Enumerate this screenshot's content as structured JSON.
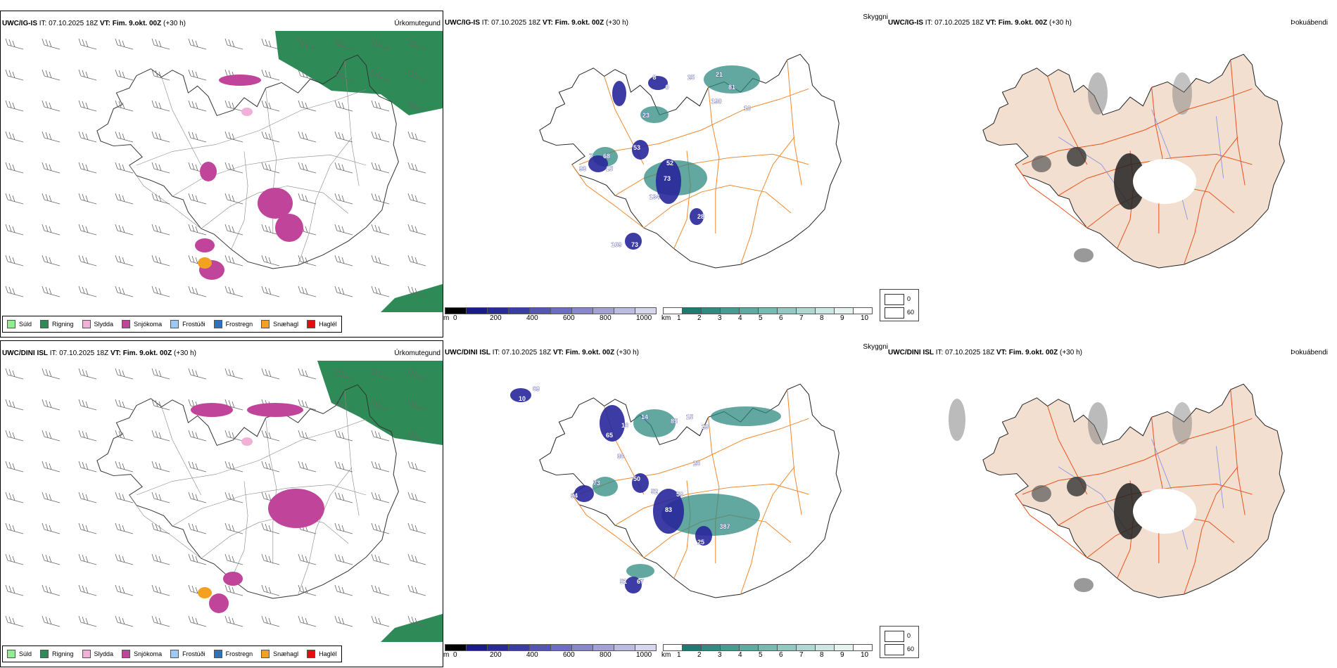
{
  "rows": [
    {
      "model": "UWC/IG-IS",
      "it_label": "IT:",
      "it_value": "07.10.2025 18Z",
      "vt_label": "VT:",
      "vt_value": "Fim. 9.okt. 00Z",
      "lead": "(+30 h)",
      "panels": {
        "precip_title": "Úrkomutegund",
        "cloud_title": "Skyggni",
        "terrain_title": "Þokuábendi"
      },
      "cloud_labels": [
        "68",
        "93",
        "53",
        "15",
        "52",
        "73",
        "134",
        "28",
        "73",
        "109",
        "81",
        "190",
        "10",
        "21",
        "25",
        "8",
        "0",
        "23",
        "7"
      ]
    },
    {
      "model": "UWC/DINI ISL",
      "it_label": "IT:",
      "it_value": "07.10.2025 18Z",
      "vt_label": "VT:",
      "vt_value": "Fim. 9.okt. 00Z",
      "lead": "(+30 h)",
      "panels": {
        "precip_title": "Úrkomutegund",
        "cloud_title": "Skyggni",
        "terrain_title": "Þokuábendi"
      },
      "cloud_labels": [
        "73",
        "94",
        "50",
        "52",
        "59",
        "83",
        "387",
        "25",
        "67",
        "51",
        "65",
        "36",
        "14",
        "16",
        "85",
        "15",
        "29",
        "26",
        "69",
        "10"
      ]
    }
  ],
  "precip_legend": [
    {
      "label": "Súld",
      "color": "#90ee90"
    },
    {
      "label": "Rigning",
      "color": "#2e8b57"
    },
    {
      "label": "Slydda",
      "color": "#f0b0d8"
    },
    {
      "label": "Snjókoma",
      "color": "#c0449a"
    },
    {
      "label": "Frostúði",
      "color": "#9ec8f5"
    },
    {
      "label": "Frostregn",
      "color": "#2f72b8"
    },
    {
      "label": "Snæhagl",
      "color": "#f4a020"
    },
    {
      "label": "Haglél",
      "color": "#e01010"
    }
  ],
  "height_bar": {
    "unit": "m",
    "ticks": [
      "0",
      "200",
      "400",
      "600",
      "800",
      "1000"
    ],
    "colors": [
      "#000000",
      "#1a1a8c",
      "#2a2a9a",
      "#3c3ca6",
      "#5555b2",
      "#6e6ebe",
      "#8888c9",
      "#a2a2d5",
      "#bcbce0",
      "#d6d6ec"
    ]
  },
  "visibility_bar": {
    "unit": "km",
    "ticks": [
      "1",
      "2",
      "3",
      "4",
      "5",
      "6",
      "7",
      "8",
      "9",
      "10"
    ],
    "colors": [
      "#ffffff",
      "#1f7a72",
      "#348a82",
      "#4a9a92",
      "#62a9a2",
      "#7ab8b2",
      "#94c8c2",
      "#b0d8d3",
      "#cce7e4",
      "#e6f3f1",
      "#ffffff"
    ]
  },
  "fog_legend": {
    "items": [
      {
        "label": "0",
        "color": "#000000"
      },
      {
        "label": "60",
        "color": "#ffffff"
      }
    ]
  },
  "colors": {
    "land": "#f2dfd0",
    "road": "#e8541e",
    "road_cloud": "#f08a30",
    "river": "#7b8fe8",
    "coast": "#222222",
    "rain": "#2e8b57",
    "snow": "#c0449a",
    "sleet": "#f0b0d8",
    "cloud_teal": "#2f8a82",
    "cloud_blue": "#27279a"
  }
}
